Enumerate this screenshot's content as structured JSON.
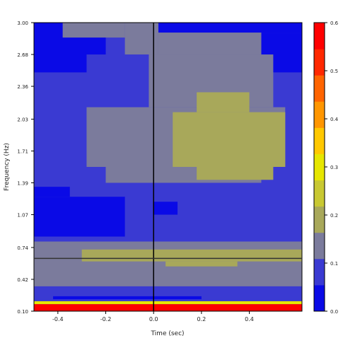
{
  "chart_data": {
    "type": "heatmap",
    "title": "",
    "xlabel": "Time (sec)",
    "ylabel": "Frequency (Hz)",
    "xlim": [
      -0.5,
      0.62
    ],
    "ylim": [
      0.1,
      3.0
    ],
    "x_ticks": [
      "-0.4",
      "-0.2",
      "0.0",
      "0.2",
      "0.4"
    ],
    "y_ticks": [
      "0.10",
      "0.42",
      "0.74",
      "1.07",
      "1.39",
      "1.71",
      "2.03",
      "2.36",
      "2.68",
      "3.00"
    ],
    "colorbar": {
      "range": [
        0.0,
        0.6
      ],
      "tick_labels": [
        "0.0",
        "0.1",
        "0.2",
        "0.3",
        "0.4",
        "0.5",
        "0.6"
      ],
      "colors": [
        "#0a0ae6",
        "#3a3ad2",
        "#7b7b9c",
        "#a8a85a",
        "#c8c832",
        "#e6e600",
        "#ffc800",
        "#ff9600",
        "#ff6400",
        "#ff2800",
        "#ff0000"
      ]
    },
    "reference_lines": {
      "vertical_x": 0.0,
      "horizontal_y": 0.63
    },
    "regions": [
      {
        "level": 1,
        "x": [
          -0.5,
          0.62
        ],
        "y": [
          0.1,
          3.0
        ]
      },
      {
        "level": 0,
        "x": [
          -0.5,
          -0.2
        ],
        "y": [
          2.68,
          3.0
        ]
      },
      {
        "level": 0,
        "x": [
          -0.5,
          -0.28
        ],
        "y": [
          2.5,
          2.68
        ]
      },
      {
        "level": 0,
        "x": [
          0.02,
          0.62
        ],
        "y": [
          2.9,
          3.0
        ]
      },
      {
        "level": 0,
        "x": [
          0.45,
          0.62
        ],
        "y": [
          2.5,
          2.9
        ]
      },
      {
        "level": 2,
        "x": [
          -0.38,
          -0.12
        ],
        "y": [
          2.85,
          3.0
        ]
      },
      {
        "level": 2,
        "x": [
          -0.12,
          0.02
        ],
        "y": [
          2.68,
          3.0
        ]
      },
      {
        "level": 2,
        "x": [
          0.02,
          0.45
        ],
        "y": [
          2.68,
          2.9
        ]
      },
      {
        "level": 2,
        "x": [
          -0.02,
          0.5
        ],
        "y": [
          2.15,
          2.68
        ]
      },
      {
        "level": 2,
        "x": [
          -0.28,
          0.55
        ],
        "y": [
          1.55,
          2.15
        ]
      },
      {
        "level": 2,
        "x": [
          -0.2,
          0.45
        ],
        "y": [
          1.39,
          1.55
        ]
      },
      {
        "level": 3,
        "x": [
          0.08,
          0.55
        ],
        "y": [
          1.55,
          2.1
        ]
      },
      {
        "level": 3,
        "x": [
          0.18,
          0.4
        ],
        "y": [
          2.1,
          2.3
        ]
      },
      {
        "level": 3,
        "x": [
          0.18,
          0.5
        ],
        "y": [
          1.42,
          1.55
        ]
      },
      {
        "level": 0,
        "x": [
          -0.5,
          -0.12
        ],
        "y": [
          0.85,
          1.25
        ]
      },
      {
        "level": 0,
        "x": [
          -0.5,
          -0.35
        ],
        "y": [
          1.25,
          1.35
        ]
      },
      {
        "level": 0,
        "x": [
          0.0,
          0.1
        ],
        "y": [
          1.07,
          1.2
        ]
      },
      {
        "level": 2,
        "x": [
          -0.5,
          0.62
        ],
        "y": [
          0.35,
          0.8
        ]
      },
      {
        "level": 3,
        "x": [
          -0.3,
          0.62
        ],
        "y": [
          0.6,
          0.72
        ]
      },
      {
        "level": 3,
        "x": [
          0.05,
          0.35
        ],
        "y": [
          0.55,
          0.6
        ]
      },
      {
        "level": 1,
        "x": [
          -0.5,
          0.62
        ],
        "y": [
          0.2,
          0.32
        ]
      },
      {
        "level": 0,
        "x": [
          -0.42,
          0.2
        ],
        "y": [
          0.22,
          0.25
        ]
      },
      {
        "level": 5,
        "x": [
          -0.5,
          0.62
        ],
        "y": [
          0.17,
          0.2
        ]
      },
      {
        "level": 10,
        "x": [
          -0.5,
          0.62
        ],
        "y": [
          0.1,
          0.17
        ]
      }
    ]
  }
}
